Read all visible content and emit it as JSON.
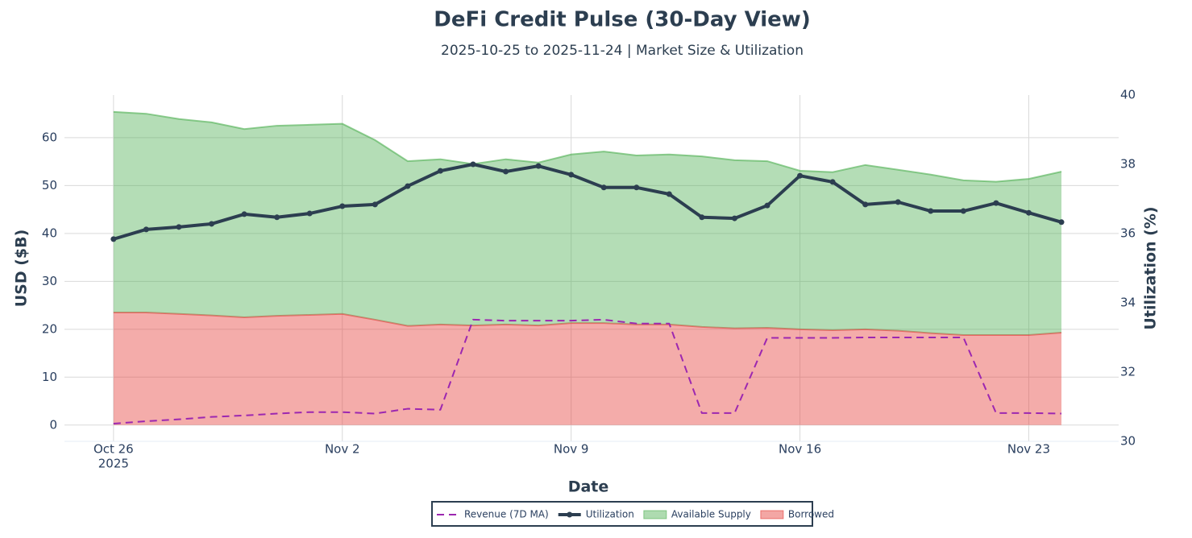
{
  "chart_data": {
    "type": "line",
    "title": "DeFi Credit Pulse (30-Day View)",
    "subtitle": "2025-10-25 to 2025-11-24 | Market Size & Utilization",
    "x_label": "Date",
    "y_label": "USD ($B)",
    "y2_label": "Utilization (%)",
    "x": [
      "2025-10-26",
      "2025-10-27",
      "2025-10-28",
      "2025-10-29",
      "2025-10-30",
      "2025-10-31",
      "2025-11-01",
      "2025-11-02",
      "2025-11-03",
      "2025-11-04",
      "2025-11-05",
      "2025-11-06",
      "2025-11-07",
      "2025-11-08",
      "2025-11-09",
      "2025-11-10",
      "2025-11-11",
      "2025-11-12",
      "2025-11-13",
      "2025-11-14",
      "2025-11-15",
      "2025-11-16",
      "2025-11-17",
      "2025-11-18",
      "2025-11-19",
      "2025-11-20",
      "2025-11-21",
      "2025-11-22",
      "2025-11-23",
      "2025-11-24"
    ],
    "xlim": [
      "2025-10-24T12:00",
      "2025-11-25T18:00"
    ],
    "xticks": [
      {
        "value": "2025-10-26",
        "label": "Oct 26"
      },
      {
        "value": "2025-11-02",
        "label": "Nov 2"
      },
      {
        "value": "2025-11-09",
        "label": "Nov 9"
      },
      {
        "value": "2025-11-16",
        "label": "Nov 16"
      },
      {
        "value": "2025-11-23",
        "label": "Nov 23"
      }
    ],
    "x_year_label": "2025",
    "ylim": [
      -3.4,
      68.9
    ],
    "yticks": [
      0,
      10,
      20,
      30,
      40,
      50,
      60
    ],
    "y2lim": [
      30,
      40
    ],
    "y2ticks": [
      30,
      32,
      34,
      36,
      38,
      40
    ],
    "grid": true,
    "stacked": true,
    "legend": "bottom",
    "series": [
      {
        "name": "Revenue (7D MA)",
        "kind": "line",
        "dash": true,
        "color": "#9c27b0",
        "values": [
          0.3,
          0.8,
          1.2,
          1.7,
          2.0,
          2.4,
          2.7,
          2.7,
          2.4,
          3.4,
          3.2,
          22.0,
          21.8,
          21.8,
          21.8,
          22.0,
          21.2,
          21.2,
          2.5,
          2.5,
          18.2,
          18.2,
          18.2,
          18.3,
          18.3,
          18.3,
          18.3,
          2.5,
          2.5,
          2.4
        ]
      },
      {
        "name": "Utilization",
        "kind": "line",
        "markers": true,
        "axis": "y2",
        "color": "#2c3e50",
        "values": [
          35.84,
          36.12,
          36.19,
          36.28,
          36.56,
          36.47,
          36.58,
          36.79,
          36.84,
          37.37,
          37.81,
          38.0,
          37.79,
          37.95,
          37.7,
          37.33,
          37.33,
          37.14,
          36.47,
          36.44,
          36.81,
          37.67,
          37.49,
          36.84,
          36.91,
          36.65,
          36.65,
          36.88,
          36.6,
          36.33
        ]
      },
      {
        "name": "Available Supply",
        "kind": "area",
        "color": "#4caf50",
        "values": [
          41.9,
          41.5,
          40.7,
          40.3,
          39.3,
          39.7,
          39.7,
          39.7,
          37.5,
          34.4,
          34.5,
          33.7,
          34.5,
          34.0,
          35.2,
          35.8,
          35.3,
          35.5,
          35.6,
          35.1,
          34.8,
          33.1,
          33.0,
          34.3,
          33.6,
          33.1,
          32.3,
          32.0,
          32.6,
          33.6
        ]
      },
      {
        "name": "Borrowed",
        "kind": "area",
        "color": "#e53935",
        "values": [
          23.5,
          23.5,
          23.2,
          22.9,
          22.5,
          22.8,
          23.0,
          23.2,
          22.0,
          20.7,
          21.0,
          20.8,
          21.0,
          20.8,
          21.3,
          21.3,
          21.0,
          21.0,
          20.5,
          20.2,
          20.3,
          20.0,
          19.8,
          20.0,
          19.7,
          19.2,
          18.8,
          18.8,
          18.8,
          19.3
        ]
      }
    ]
  }
}
